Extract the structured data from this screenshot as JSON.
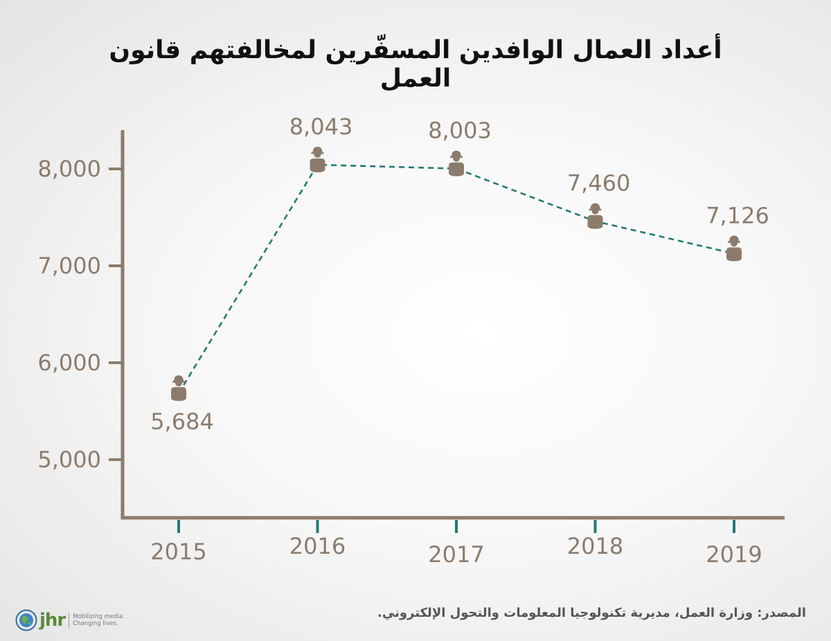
{
  "chart_data": {
    "type": "line",
    "title": "أعداد العمال الوافدين المسفّرين لمخالفتهم قانون العمل",
    "categories": [
      "2015",
      "2016",
      "2017",
      "2018",
      "2019"
    ],
    "values": [
      5684,
      8043,
      8003,
      7460,
      7126
    ],
    "value_labels": [
      "5,684",
      "8,043",
      "8,003",
      "7,460",
      "7,126"
    ],
    "y_ticks": [
      5000,
      6000,
      7000,
      8000
    ],
    "y_tick_labels": [
      "5,000",
      "6,000",
      "7,000",
      "8,000"
    ],
    "ylim": [
      4400,
      8400
    ],
    "xlabel": "",
    "ylabel": "",
    "grid": false,
    "marker_icon": "worker-helmet-icon"
  },
  "source": "المصدر: وزارة العمل، مديرية تكنولوجيا المعلومات والتحول الإلكتروني.",
  "logo": {
    "brand": "jhr",
    "tagline_line1": "Mobilizing media.",
    "tagline_line2": "Changing lives."
  },
  "colors": {
    "axis": "#8c7b6c",
    "label": "#8c7b6c",
    "line": "#237a73",
    "marker": "#8c7b6c",
    "title": "#111111"
  }
}
